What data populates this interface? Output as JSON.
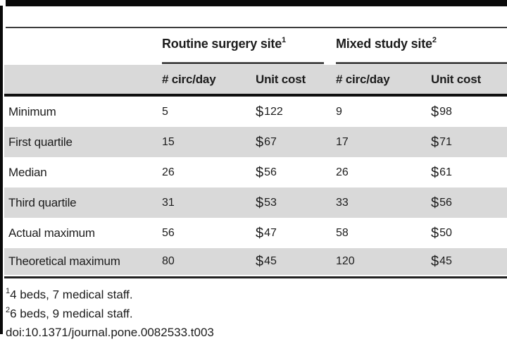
{
  "table": {
    "col_groups": [
      {
        "label": "Routine surgery site",
        "sup": "1"
      },
      {
        "label": "Mixed study site",
        "sup": "2"
      }
    ],
    "sub_headers": [
      "# circ/day",
      "Unit cost",
      "# circ/day",
      "Unit cost"
    ],
    "rows": [
      {
        "label": "Minimum",
        "values": [
          "5",
          "$122",
          "9",
          "$98"
        ]
      },
      {
        "label": "First quartile",
        "values": [
          "15",
          "$67",
          "17",
          "$71"
        ]
      },
      {
        "label": "Median",
        "values": [
          "26",
          "$56",
          "26",
          "$61"
        ]
      },
      {
        "label": "Third quartile",
        "values": [
          "31",
          "$53",
          "33",
          "$56"
        ]
      },
      {
        "label": "Actual maximum",
        "values": [
          "56",
          "$47",
          "58",
          "$50"
        ]
      },
      {
        "label": "Theoretical maximum",
        "values": [
          "80",
          "$45",
          "120",
          "$45"
        ]
      }
    ]
  },
  "footnotes": [
    {
      "sup": "1",
      "text": "4 beds, 7 medical staff."
    },
    {
      "sup": "2",
      "text": "6 beds, 9 medical staff."
    }
  ],
  "doi": "doi:10.1371/journal.pone.0082533.t003",
  "colors": {
    "row_band": "#d9d9d9",
    "frame": "#0a0a0a",
    "text": "#1c1c1c"
  }
}
